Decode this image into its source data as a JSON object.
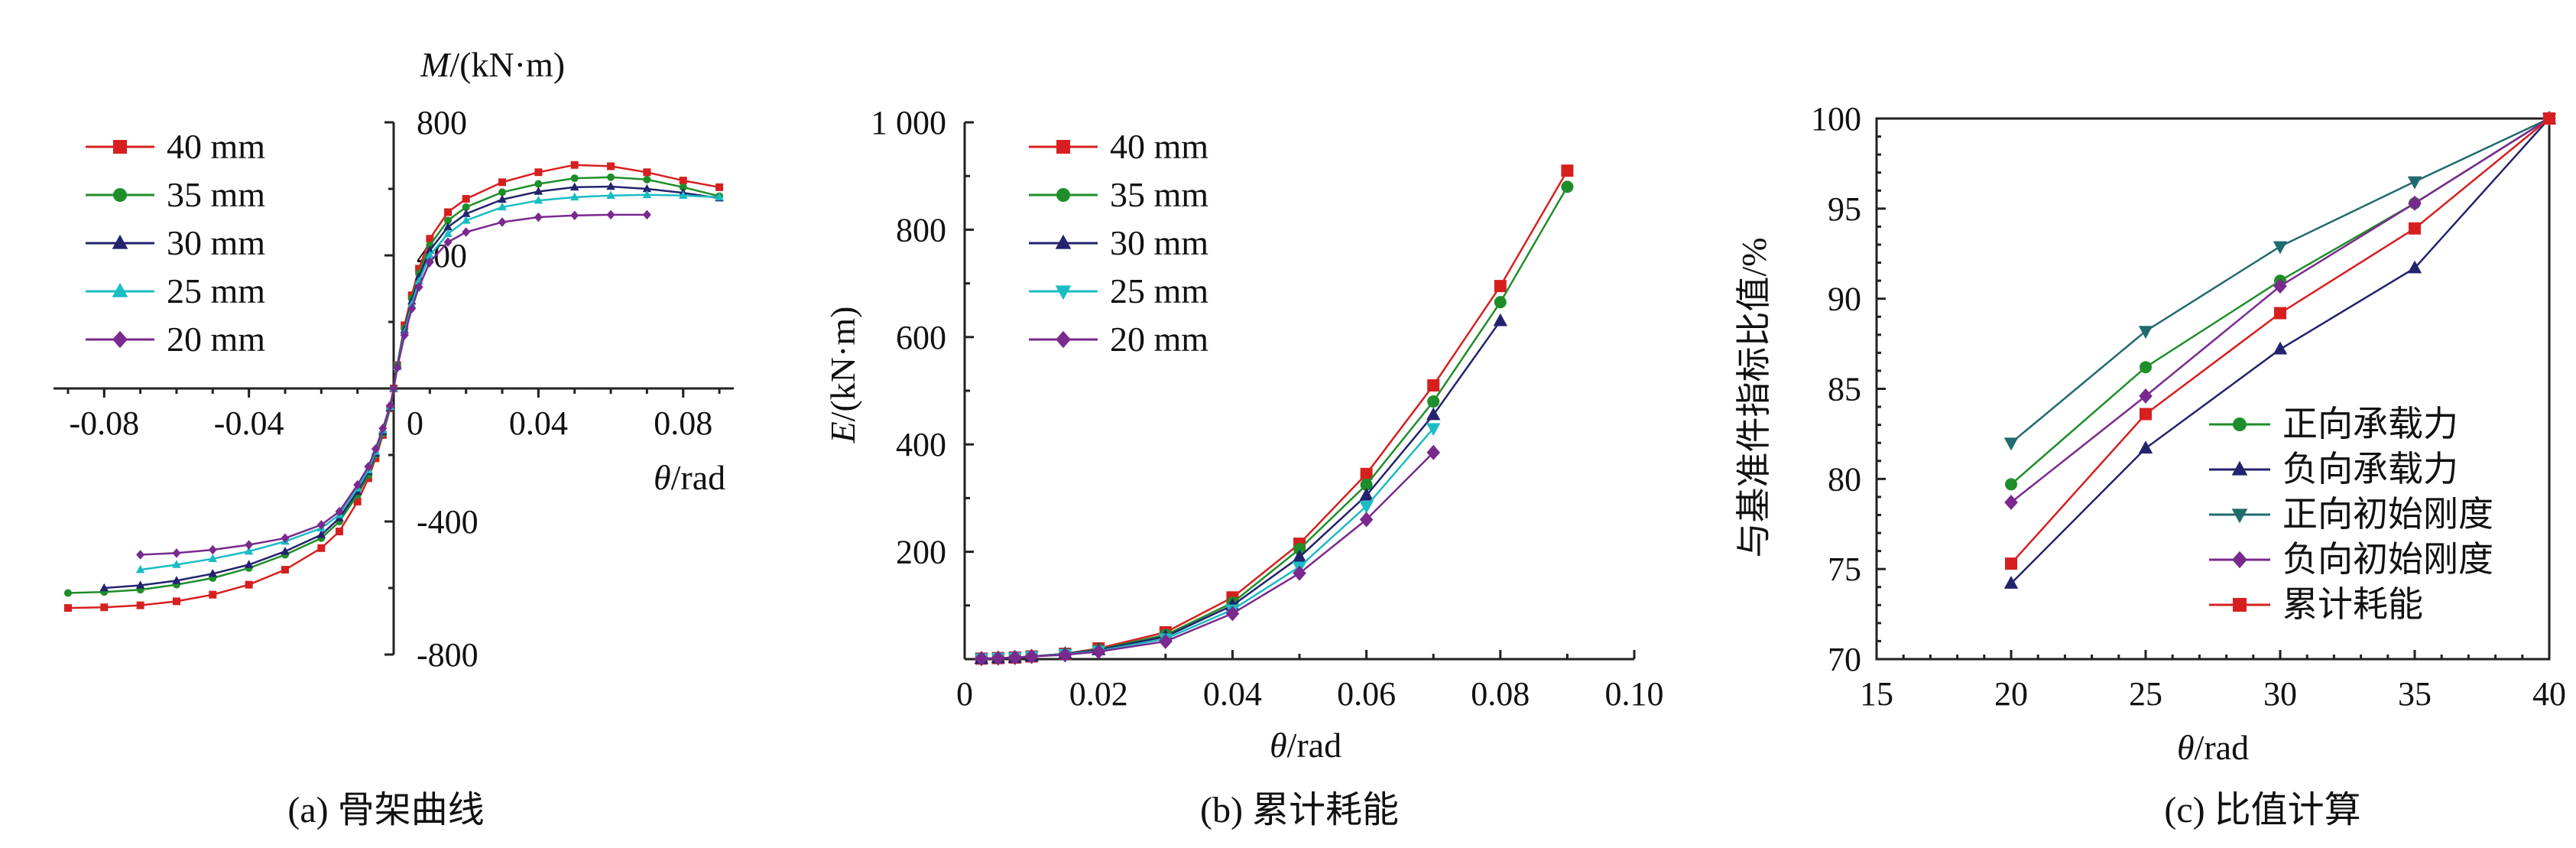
{
  "chart_data": [
    {
      "type": "line",
      "caption": "(a) 骨架曲线",
      "xlabel_italic": "θ",
      "xlabel_unit": "/rad",
      "ylabel_italic": "M",
      "ylabel_unit": "/(kN·m)",
      "xlim": [
        -0.095,
        0.095
      ],
      "ylim": [
        -800,
        800
      ],
      "xticks": [
        -0.08,
        -0.04,
        0,
        0.04,
        0.08
      ],
      "xtick_labels": [
        "-0.08",
        "-0.04",
        "0",
        "0.04",
        "0.08"
      ],
      "yticks": [
        800,
        400,
        -400,
        -800
      ],
      "ytick_labels": [
        "800",
        "400",
        "-400",
        "-800"
      ],
      "legend_position": "top-left",
      "series": [
        {
          "name": "40 mm",
          "color": "#d62020",
          "marker": "square",
          "x": [
            -0.09,
            -0.08,
            -0.07,
            -0.06,
            -0.05,
            -0.04,
            -0.03,
            -0.02,
            -0.015,
            -0.01,
            -0.007,
            -0.005,
            -0.003,
            -0.001,
            0,
            0.001,
            0.003,
            0.005,
            0.007,
            0.01,
            0.015,
            0.02,
            0.03,
            0.04,
            0.05,
            0.06,
            0.07,
            0.08,
            0.09
          ],
          "y": [
            -660,
            -658,
            -652,
            -640,
            -620,
            -590,
            -545,
            -480,
            -430,
            -340,
            -270,
            -210,
            -140,
            -60,
            0,
            70,
            190,
            280,
            360,
            450,
            530,
            570,
            620,
            650,
            672,
            668,
            650,
            625,
            605
          ]
        },
        {
          "name": "35 mm",
          "color": "#1e8e2a",
          "marker": "circle",
          "x": [
            -0.09,
            -0.08,
            -0.07,
            -0.06,
            -0.05,
            -0.04,
            -0.03,
            -0.02,
            -0.015,
            -0.01,
            -0.007,
            -0.005,
            -0.003,
            -0.001,
            0,
            0.001,
            0.003,
            0.005,
            0.007,
            0.01,
            0.015,
            0.02,
            0.03,
            0.04,
            0.05,
            0.06,
            0.07,
            0.08,
            0.09
          ],
          "y": [
            -615,
            -612,
            -605,
            -590,
            -570,
            -540,
            -500,
            -450,
            -400,
            -320,
            -260,
            -200,
            -135,
            -60,
            0,
            70,
            180,
            270,
            345,
            430,
            505,
            545,
            590,
            615,
            632,
            635,
            628,
            605,
            578
          ]
        },
        {
          "name": "30 mm",
          "color": "#23236e",
          "marker": "triangle-up",
          "x": [
            -0.08,
            -0.07,
            -0.06,
            -0.05,
            -0.04,
            -0.03,
            -0.02,
            -0.015,
            -0.01,
            -0.007,
            -0.005,
            -0.003,
            -0.001,
            0,
            0.001,
            0.003,
            0.005,
            0.007,
            0.01,
            0.015,
            0.02,
            0.03,
            0.04,
            0.05,
            0.06,
            0.07,
            0.08,
            0.09
          ],
          "y": [
            -600,
            -592,
            -578,
            -557,
            -530,
            -490,
            -440,
            -390,
            -310,
            -250,
            -195,
            -130,
            -58,
            0,
            68,
            175,
            262,
            335,
            415,
            485,
            525,
            568,
            592,
            605,
            607,
            600,
            588,
            572
          ]
        },
        {
          "name": "25 mm",
          "color": "#1bbcc4",
          "marker": "triangle-up",
          "x": [
            -0.07,
            -0.06,
            -0.05,
            -0.04,
            -0.03,
            -0.02,
            -0.015,
            -0.01,
            -0.007,
            -0.005,
            -0.003,
            -0.001,
            0,
            0.001,
            0.003,
            0.005,
            0.007,
            0.01,
            0.015,
            0.02,
            0.03,
            0.04,
            0.05,
            0.06,
            0.07,
            0.08,
            0.09
          ],
          "y": [
            -545,
            -530,
            -512,
            -490,
            -460,
            -420,
            -380,
            -300,
            -245,
            -190,
            -125,
            -55,
            0,
            65,
            168,
            252,
            322,
            400,
            465,
            505,
            545,
            565,
            575,
            580,
            582,
            580,
            575
          ]
        },
        {
          "name": "20 mm",
          "color": "#7a2a8e",
          "marker": "diamond",
          "x": [
            -0.07,
            -0.06,
            -0.05,
            -0.04,
            -0.03,
            -0.02,
            -0.015,
            -0.01,
            -0.007,
            -0.005,
            -0.003,
            -0.001,
            0,
            0.001,
            0.003,
            0.005,
            0.007,
            0.01,
            0.015,
            0.02,
            0.03,
            0.04,
            0.05,
            0.06,
            0.07
          ],
          "y": [
            -500,
            -495,
            -485,
            -470,
            -450,
            -410,
            -370,
            -290,
            -235,
            -182,
            -120,
            -52,
            0,
            62,
            160,
            240,
            305,
            380,
            440,
            470,
            500,
            515,
            520,
            522,
            522
          ]
        }
      ]
    },
    {
      "type": "line",
      "caption": "(b) 累计耗能",
      "xlabel_italic": "θ",
      "xlabel_unit": "/rad",
      "ylabel_italic": "E",
      "ylabel_unit": "/(kN·m)",
      "xlim": [
        0,
        0.1
      ],
      "ylim": [
        0,
        1000
      ],
      "xticks": [
        0,
        0.02,
        0.04,
        0.06,
        0.08,
        0.1
      ],
      "xtick_labels": [
        "0",
        "0.02",
        "0.04",
        "0.06",
        "0.08",
        "0.10"
      ],
      "yticks": [
        200,
        400,
        600,
        800,
        1000
      ],
      "ytick_labels": [
        "200",
        "400",
        "600",
        "800",
        "1 000"
      ],
      "legend_position": "top-left",
      "series": [
        {
          "name": "40 mm",
          "color": "#d62020",
          "marker": "square",
          "x": [
            0.0025,
            0.005,
            0.0075,
            0.01,
            0.015,
            0.02,
            0.03,
            0.04,
            0.05,
            0.06,
            0.07,
            0.08,
            0.09
          ],
          "y": [
            1,
            2,
            3,
            5,
            10,
            20,
            50,
            115,
            215,
            345,
            510,
            695,
            910
          ]
        },
        {
          "name": "35 mm",
          "color": "#1e8e2a",
          "marker": "circle",
          "x": [
            0.0025,
            0.005,
            0.0075,
            0.01,
            0.015,
            0.02,
            0.03,
            0.04,
            0.05,
            0.06,
            0.07,
            0.08,
            0.09
          ],
          "y": [
            1,
            2,
            3,
            5,
            10,
            18,
            45,
            105,
            205,
            325,
            480,
            665,
            880
          ]
        },
        {
          "name": "30 mm",
          "color": "#23236e",
          "marker": "triangle-up",
          "x": [
            0.0025,
            0.005,
            0.0075,
            0.01,
            0.015,
            0.02,
            0.03,
            0.04,
            0.05,
            0.06,
            0.07,
            0.08
          ],
          "y": [
            1,
            2,
            3,
            5,
            10,
            17,
            42,
            100,
            190,
            305,
            455,
            630
          ]
        },
        {
          "name": "25 mm",
          "color": "#1bbcc4",
          "marker": "triangle-down",
          "x": [
            0.0025,
            0.005,
            0.0075,
            0.01,
            0.015,
            0.02,
            0.03,
            0.04,
            0.05,
            0.06,
            0.07
          ],
          "y": [
            1,
            2,
            3,
            5,
            9,
            15,
            38,
            92,
            172,
            285,
            430
          ]
        },
        {
          "name": "20 mm",
          "color": "#7a2a8e",
          "marker": "diamond",
          "x": [
            0.0025,
            0.005,
            0.0075,
            0.01,
            0.015,
            0.02,
            0.03,
            0.04,
            0.05,
            0.06,
            0.07
          ],
          "y": [
            1,
            2,
            3,
            5,
            8,
            14,
            33,
            85,
            160,
            260,
            385
          ]
        }
      ]
    },
    {
      "type": "line",
      "caption": "(c) 比值计算",
      "xlabel_italic": "θ",
      "xlabel_unit": "/rad",
      "ylabel": "与基准件指标比值/%",
      "xlim": [
        15,
        40
      ],
      "ylim": [
        70,
        100
      ],
      "xticks": [
        15,
        20,
        25,
        30,
        35,
        40
      ],
      "xtick_labels": [
        "15",
        "20",
        "25",
        "30",
        "35",
        "40"
      ],
      "yticks": [
        70,
        75,
        80,
        85,
        90,
        95,
        100
      ],
      "ytick_labels": [
        "70",
        "75",
        "80",
        "85",
        "90",
        "95",
        "100"
      ],
      "legend_position": "bottom-right",
      "categories": [
        20,
        25,
        30,
        35,
        40
      ],
      "series": [
        {
          "name": "正向承载力",
          "color": "#1e8e2a",
          "marker": "circle",
          "values": [
            79.7,
            86.2,
            91.0,
            95.3,
            100
          ]
        },
        {
          "name": "负向承载力",
          "color": "#23236e",
          "marker": "triangle-up",
          "values": [
            74.2,
            81.7,
            87.2,
            91.7,
            100
          ]
        },
        {
          "name": "正向初始刚度",
          "color": "#1f6b6e",
          "marker": "triangle-down",
          "values": [
            82.0,
            88.2,
            92.9,
            96.5,
            100
          ]
        },
        {
          "name": "负向初始刚度",
          "color": "#7a2a8e",
          "marker": "diamond",
          "values": [
            78.7,
            84.6,
            90.7,
            95.3,
            100
          ]
        },
        {
          "name": "累计耗能",
          "color": "#d62020",
          "marker": "square",
          "values": [
            75.3,
            83.6,
            89.2,
            93.9,
            100
          ]
        }
      ]
    }
  ]
}
